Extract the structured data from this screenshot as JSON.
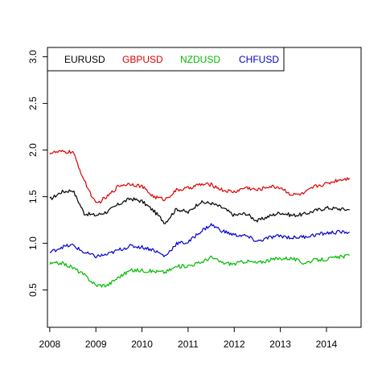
{
  "chart_data": {
    "type": "line",
    "title": "",
    "xlabel": "",
    "ylabel": "",
    "xlim": [
      2007.95,
      2014.75
    ],
    "ylim": [
      0.1,
      3.1
    ],
    "x_ticks": [
      "2008",
      "2009",
      "2010",
      "2011",
      "2012",
      "2013",
      "2014"
    ],
    "y_ticks": [
      "0.5",
      "1.0",
      "1.5",
      "2.0",
      "2.5",
      "3.0"
    ],
    "grid": false,
    "legend_position": "top-left",
    "x": [
      2008.0,
      2008.25,
      2008.5,
      2008.75,
      2009.0,
      2009.25,
      2009.5,
      2009.75,
      2010.0,
      2010.25,
      2010.5,
      2010.75,
      2011.0,
      2011.25,
      2011.5,
      2011.75,
      2012.0,
      2012.25,
      2012.5,
      2012.75,
      2013.0,
      2013.25,
      2013.5,
      2013.75,
      2014.0,
      2014.25,
      2014.5
    ],
    "series": [
      {
        "name": "EURUSD",
        "color": "#000000",
        "values": [
          1.47,
          1.55,
          1.57,
          1.32,
          1.3,
          1.34,
          1.42,
          1.48,
          1.45,
          1.35,
          1.22,
          1.37,
          1.33,
          1.44,
          1.43,
          1.38,
          1.3,
          1.32,
          1.24,
          1.29,
          1.33,
          1.3,
          1.31,
          1.35,
          1.38,
          1.37,
          1.36
        ]
      },
      {
        "name": "GBPUSD",
        "color": "#dd0000",
        "values": [
          1.97,
          1.98,
          1.98,
          1.67,
          1.42,
          1.5,
          1.62,
          1.64,
          1.61,
          1.5,
          1.47,
          1.57,
          1.59,
          1.63,
          1.63,
          1.57,
          1.55,
          1.6,
          1.57,
          1.61,
          1.6,
          1.52,
          1.53,
          1.61,
          1.64,
          1.68,
          1.7
        ]
      },
      {
        "name": "NZDUSD",
        "color": "#00bb00",
        "values": [
          0.78,
          0.79,
          0.74,
          0.66,
          0.55,
          0.55,
          0.64,
          0.71,
          0.71,
          0.7,
          0.69,
          0.75,
          0.76,
          0.79,
          0.85,
          0.79,
          0.78,
          0.81,
          0.79,
          0.82,
          0.84,
          0.84,
          0.79,
          0.82,
          0.83,
          0.85,
          0.87
        ]
      },
      {
        "name": "CHFUSD",
        "color": "#0000cc",
        "values": [
          0.9,
          0.96,
          0.98,
          0.9,
          0.86,
          0.88,
          0.93,
          0.97,
          0.96,
          0.93,
          0.86,
          1.0,
          1.01,
          1.12,
          1.2,
          1.13,
          1.09,
          1.08,
          1.02,
          1.06,
          1.08,
          1.06,
          1.07,
          1.09,
          1.11,
          1.12,
          1.12
        ]
      }
    ]
  }
}
